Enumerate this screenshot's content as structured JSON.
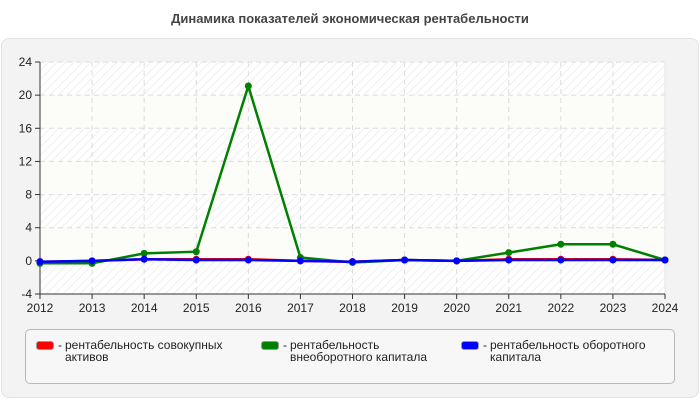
{
  "title": "Динамика показателей экономическая рентабельности",
  "chart_data": {
    "type": "line",
    "title": "Динамика показателей экономическая рентабельности",
    "xlabel": "",
    "ylabel": "",
    "x": [
      2012,
      2013,
      2014,
      2015,
      2016,
      2017,
      2018,
      2019,
      2020,
      2021,
      2022,
      2023,
      2024
    ],
    "ylim": [
      -4,
      24
    ],
    "yticks": [
      -4,
      0,
      4,
      8,
      12,
      16,
      20,
      24
    ],
    "grid": true,
    "legend_position": "bottom",
    "series": [
      {
        "name": "рентабельность совокупных активов",
        "color": "#ff0000",
        "values": [
          -0.1,
          0.0,
          0.2,
          0.2,
          0.2,
          0.0,
          -0.1,
          0.1,
          0.0,
          0.2,
          0.2,
          0.2,
          0.1
        ]
      },
      {
        "name": "рентабельность внеоборотного капитала",
        "color": "#008000",
        "values": [
          -0.3,
          -0.3,
          0.9,
          1.1,
          21.1,
          0.4,
          -0.2,
          0.1,
          0.0,
          1.0,
          2.0,
          2.0,
          0.1
        ]
      },
      {
        "name": "рентабельность оборотного капитала",
        "color": "#0000ff",
        "values": [
          -0.1,
          0.0,
          0.2,
          0.1,
          0.1,
          0.0,
          -0.1,
          0.1,
          0.0,
          0.1,
          0.1,
          0.1,
          0.1
        ]
      }
    ]
  },
  "legend": {
    "items": [
      {
        "label": "рентабельность совокупных активов",
        "color": "#ff0000"
      },
      {
        "label": "рентабельность внеоборотного капитала",
        "color": "#008000"
      },
      {
        "label": "рентабельность оборотного капитала",
        "color": "#0000ff"
      }
    ],
    "separator": "-"
  }
}
